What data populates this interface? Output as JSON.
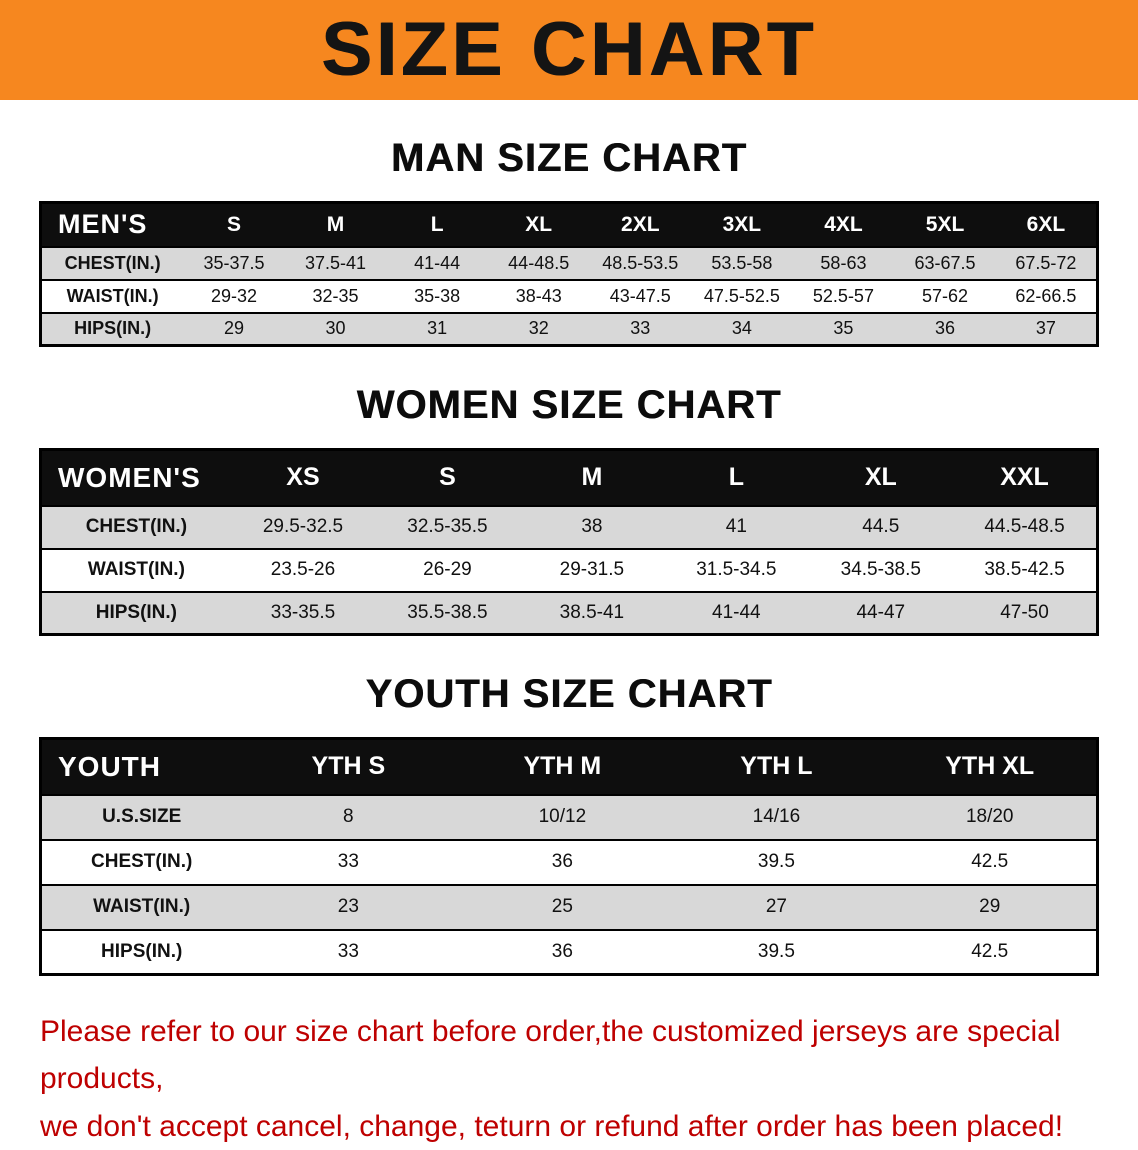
{
  "banner": {
    "title": "SIZE CHART"
  },
  "colors": {
    "banner_bg": "#f6871f",
    "table_header_bg": "#0e0e0e",
    "row_alt_gray": "#d8d8d8",
    "note_red": "#be0000"
  },
  "men": {
    "heading": "MAN SIZE CHART",
    "label": "MEN'S",
    "columns": [
      "S",
      "M",
      "L",
      "XL",
      "2XL",
      "3XL",
      "4XL",
      "5XL",
      "6XL"
    ],
    "rows": [
      {
        "label": "CHEST(IN.)",
        "values": [
          "35-37.5",
          "37.5-41",
          "41-44",
          "44-48.5",
          "48.5-53.5",
          "53.5-58",
          "58-63",
          "63-67.5",
          "67.5-72"
        ]
      },
      {
        "label": "WAIST(IN.)",
        "values": [
          "29-32",
          "32-35",
          "35-38",
          "38-43",
          "43-47.5",
          "47.5-52.5",
          "52.5-57",
          "57-62",
          "62-66.5"
        ]
      },
      {
        "label": "HIPS(IN.)",
        "values": [
          "29",
          "30",
          "31",
          "32",
          "33",
          "34",
          "35",
          "36",
          "37"
        ]
      }
    ]
  },
  "women": {
    "heading": "WOMEN SIZE CHART",
    "label": "WOMEN'S",
    "columns": [
      "XS",
      "S",
      "M",
      "L",
      "XL",
      "XXL"
    ],
    "rows": [
      {
        "label": "CHEST(IN.)",
        "values": [
          "29.5-32.5",
          "32.5-35.5",
          "38",
          "41",
          "44.5",
          "44.5-48.5"
        ]
      },
      {
        "label": "WAIST(IN.)",
        "values": [
          "23.5-26",
          "26-29",
          "29-31.5",
          "31.5-34.5",
          "34.5-38.5",
          "38.5-42.5"
        ]
      },
      {
        "label": "HIPS(IN.)",
        "values": [
          "33-35.5",
          "35.5-38.5",
          "38.5-41",
          "41-44",
          "44-47",
          "47-50"
        ]
      }
    ]
  },
  "youth": {
    "heading": "YOUTH SIZE CHART",
    "label": "YOUTH",
    "columns": [
      "YTH S",
      "YTH M",
      "YTH L",
      "YTH XL"
    ],
    "rows": [
      {
        "label": "U.S.SIZE",
        "values": [
          "8",
          "10/12",
          "14/16",
          "18/20"
        ]
      },
      {
        "label": "CHEST(IN.)",
        "values": [
          "33",
          "36",
          "39.5",
          "42.5"
        ]
      },
      {
        "label": "WAIST(IN.)",
        "values": [
          "23",
          "25",
          "27",
          "29"
        ]
      },
      {
        "label": "HIPS(IN.)",
        "values": [
          "33",
          "36",
          "39.5",
          "42.5"
        ]
      }
    ]
  },
  "note": {
    "line1": "Please refer to our size chart before order,the customized jerseys are special products,",
    "line2": "we don't accept cancel, change, teturn or refund after order has been placed!"
  }
}
